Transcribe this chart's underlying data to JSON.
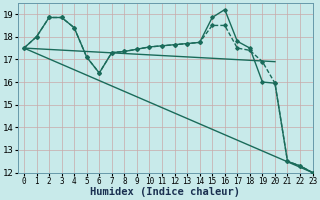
{
  "xlabel": "Humidex (Indice chaleur)",
  "xlim": [
    -0.5,
    23
  ],
  "ylim": [
    12,
    19.5
  ],
  "yticks": [
    12,
    13,
    14,
    15,
    16,
    17,
    18,
    19
  ],
  "xticks": [
    0,
    1,
    2,
    3,
    4,
    5,
    6,
    7,
    8,
    9,
    10,
    11,
    12,
    13,
    14,
    15,
    16,
    17,
    18,
    19,
    20,
    21,
    22,
    23
  ],
  "background_color": "#c8eaea",
  "grid_color": "#c8a8a8",
  "line_color": "#1a6b5a",
  "lines": [
    {
      "x": [
        0,
        23
      ],
      "y": [
        17.5,
        12.0
      ],
      "marker": false,
      "dashed": false,
      "lw": 1.0
    },
    {
      "x": [
        0,
        20
      ],
      "y": [
        17.5,
        16.9
      ],
      "marker": false,
      "dashed": false,
      "lw": 1.0
    },
    {
      "x": [
        0,
        1,
        2,
        3,
        4,
        5,
        6,
        7,
        8,
        9,
        10,
        11,
        12,
        13,
        14,
        15,
        16,
        17,
        18,
        19,
        20,
        21,
        22,
        23
      ],
      "y": [
        17.5,
        18.0,
        18.85,
        18.85,
        18.4,
        17.1,
        16.4,
        17.3,
        17.35,
        17.45,
        17.55,
        17.6,
        17.65,
        17.7,
        17.75,
        18.5,
        18.5,
        17.5,
        17.4,
        16.9,
        15.95,
        12.5,
        12.3,
        12.0
      ],
      "marker": true,
      "dashed": true,
      "lw": 1.0
    },
    {
      "x": [
        0,
        1,
        2,
        3,
        4,
        5,
        6,
        7,
        8,
        9,
        10,
        11,
        12,
        13,
        14,
        15,
        16,
        17,
        18,
        19,
        20,
        21,
        22,
        23
      ],
      "y": [
        17.5,
        18.0,
        18.85,
        18.85,
        18.4,
        17.1,
        16.4,
        17.3,
        17.35,
        17.45,
        17.55,
        17.6,
        17.65,
        17.7,
        17.75,
        18.85,
        19.2,
        17.8,
        17.5,
        16.0,
        15.95,
        12.5,
        12.3,
        12.0
      ],
      "marker": true,
      "dashed": false,
      "lw": 1.0
    }
  ],
  "font_size_xlabel": 7.5,
  "xlabel_color": "#1a3050"
}
